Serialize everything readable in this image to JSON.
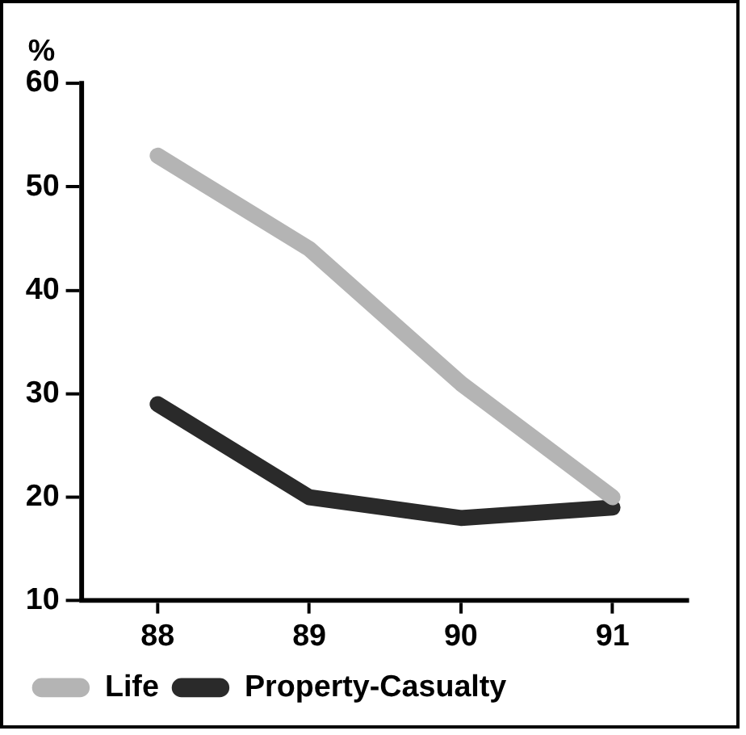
{
  "chart_data": {
    "type": "line",
    "ylabel": "%",
    "categories": [
      "88",
      "89",
      "90",
      "91"
    ],
    "series": [
      {
        "name": "Life",
        "color": "#b4b4b4",
        "values": [
          53,
          44,
          31,
          20
        ]
      },
      {
        "name": "Property-Casualty",
        "color": "#2a2a2a",
        "values": [
          29,
          20,
          18,
          19
        ]
      }
    ],
    "ylim": [
      10,
      60
    ],
    "yticks": [
      10,
      20,
      30,
      40,
      50,
      60
    ],
    "grid": false,
    "legend": "bottom left",
    "marker": "none",
    "line_style": "solid"
  }
}
